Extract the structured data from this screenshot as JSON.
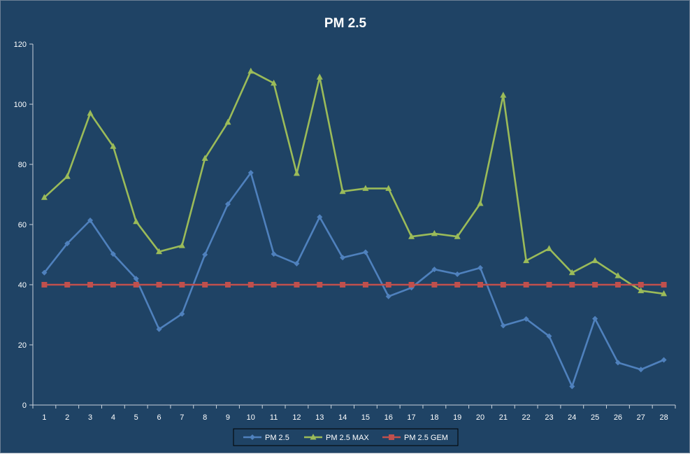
{
  "chart_data": {
    "type": "line",
    "title": "PM 2.5",
    "xlabel": "",
    "ylabel": "",
    "categories": [
      "1",
      "2",
      "3",
      "4",
      "5",
      "6",
      "7",
      "8",
      "9",
      "10",
      "11",
      "12",
      "13",
      "14",
      "15",
      "16",
      "17",
      "18",
      "19",
      "20",
      "21",
      "22",
      "23",
      "24",
      "25",
      "26",
      "27",
      "28"
    ],
    "ylim": [
      0,
      120
    ],
    "yticks": [
      "0",
      "20",
      "40",
      "60",
      "80",
      "100",
      "120"
    ],
    "grid": false,
    "legend_position": "bottom",
    "series": [
      {
        "name": "PM 2.5",
        "color": "#4f81bd",
        "marker": "diamond",
        "values": [
          44,
          53.7,
          61.4,
          50.2,
          42,
          25.2,
          30.3,
          50,
          66.8,
          77.2,
          50.2,
          47,
          62.5,
          49,
          50.8,
          36.1,
          39,
          45.1,
          43.5,
          45.6,
          26.4,
          28.6,
          22.9,
          6.2,
          28.7,
          14.1,
          11.8,
          15
        ]
      },
      {
        "name": "PM 2.5 MAX",
        "color": "#9bbb59",
        "marker": "triangle",
        "values": [
          69,
          76,
          97,
          86,
          61,
          51,
          53,
          82,
          94,
          111,
          107,
          77,
          109,
          71,
          72,
          72,
          56,
          57,
          56,
          67,
          103,
          48,
          52,
          44,
          48,
          43,
          38,
          37
        ]
      },
      {
        "name": "PM 2.5 GEM",
        "color": "#c0504d",
        "marker": "square",
        "values": [
          40,
          40,
          40,
          40,
          40,
          40,
          40,
          40,
          40,
          40,
          40,
          40,
          40,
          40,
          40,
          40,
          40,
          40,
          40,
          40,
          40,
          40,
          40,
          40,
          40,
          40,
          40,
          40
        ]
      }
    ]
  }
}
